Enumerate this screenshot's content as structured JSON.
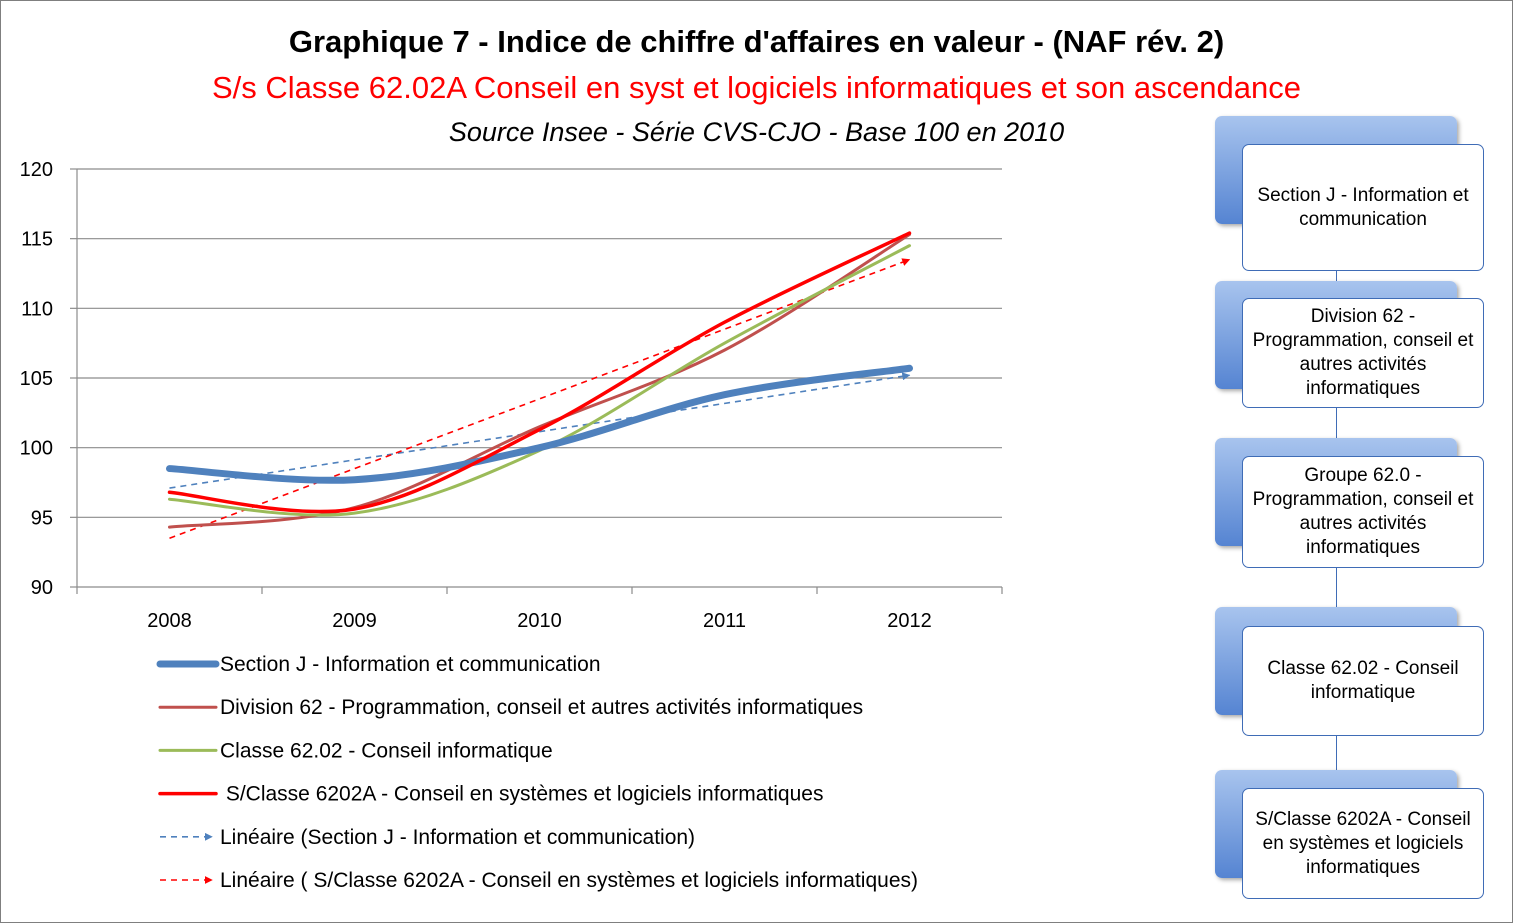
{
  "titles": {
    "title": "Graphique 7 - Indice de chiffre d'affaires en valeur - (NAF rév. 2)",
    "subtitle": "S/s Classe 62.02A Conseil en syst et logiciels informatiques et son ascendance",
    "source": "Source Insee - Série CVS-CJO - Base 100 en 2010"
  },
  "chart_data": {
    "type": "line",
    "x": [
      "2008",
      "2009",
      "2010",
      "2011",
      "2012"
    ],
    "ylim": [
      90,
      120
    ],
    "yticks": [
      "90",
      "95",
      "100",
      "105",
      "110",
      "115",
      "120"
    ],
    "grid": true,
    "legend_position": "bottom",
    "series": [
      {
        "name": "Section J - Information et communication",
        "values": [
          98.5,
          97.7,
          100.0,
          103.8,
          105.7
        ],
        "color": "#4f81bd",
        "style": "thick"
      },
      {
        "name": "Division 62 - Programmation, conseil et autres activités informatiques",
        "values": [
          94.3,
          95.7,
          101.5,
          107.0,
          115.3
        ],
        "color": "#c0504d",
        "style": "solid"
      },
      {
        "name": "Classe 62.02 - Conseil informatique",
        "values": [
          96.3,
          95.3,
          99.8,
          107.5,
          114.5
        ],
        "color": "#9bbb59",
        "style": "solid"
      },
      {
        "name": " S/Classe 6202A - Conseil en systèmes et logiciels informatiques",
        "values": [
          96.8,
          95.6,
          101.3,
          109.0,
          115.4
        ],
        "color": "#ff0000",
        "style": "solid"
      },
      {
        "name": "Linéaire (Section J - Information et communication)",
        "values": [
          97.1,
          99.1,
          101.1,
          103.2,
          105.2
        ],
        "color": "#4f81bd",
        "style": "dashed"
      },
      {
        "name": "Linéaire ( S/Classe 6202A - Conseil en systèmes et logiciels informatiques)",
        "values": [
          93.5,
          98.5,
          103.5,
          108.5,
          113.5
        ],
        "color": "#ff0000",
        "style": "dashed"
      }
    ]
  },
  "hierarchy": [
    "Section J - Information et communication",
    "Division 62 - Programmation, conseil et autres activités informatiques",
    "Groupe 62.0 - Programmation, conseil et autres activités informatiques",
    "Classe 62.02 - Conseil informatique",
    "S/Classe 6202A - Conseil en systèmes et logiciels informatiques"
  ]
}
